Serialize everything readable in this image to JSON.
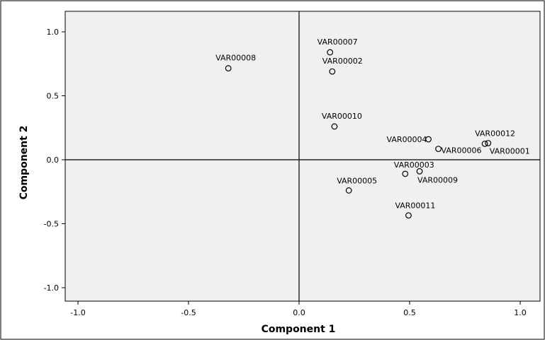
{
  "chart_data": {
    "type": "scatter",
    "title": "",
    "xlabel": "Component 1",
    "ylabel": "Component 2",
    "xlim": [
      -1.1,
      1.1
    ],
    "ylim": [
      -1.1,
      1.1
    ],
    "xticks": [
      "-1.0",
      "-0.5",
      "0.0",
      "0.5",
      "1.0"
    ],
    "xtick_values": [
      -1.0,
      -0.5,
      0.0,
      0.5,
      1.0
    ],
    "yticks": [
      "1.0",
      "0.5",
      "0.0",
      "-0.5",
      "-1.0"
    ],
    "ytick_values": [
      1.0,
      0.5,
      0.0,
      -0.5,
      -1.0
    ],
    "reference_lines": {
      "x": 0.0,
      "y": 0.0
    },
    "grid": false,
    "marker": "open-circle",
    "colors": {
      "plot_background": "#f0f0f0",
      "marker": "#000000",
      "axes": "#000000",
      "text": "#000000"
    },
    "points": [
      {
        "label": "VAR00001",
        "x": 0.855,
        "y": 0.13
      },
      {
        "label": "VAR00002",
        "x": 0.15,
        "y": 0.69
      },
      {
        "label": "VAR00003",
        "x": 0.48,
        "y": -0.11
      },
      {
        "label": "VAR00004",
        "x": 0.585,
        "y": 0.16
      },
      {
        "label": "VAR00005",
        "x": 0.225,
        "y": -0.24
      },
      {
        "label": "VAR00006",
        "x": 0.63,
        "y": 0.085
      },
      {
        "label": "VAR00007",
        "x": 0.14,
        "y": 0.84
      },
      {
        "label": "VAR00008",
        "x": -0.32,
        "y": 0.715
      },
      {
        "label": "VAR00009",
        "x": 0.545,
        "y": -0.09
      },
      {
        "label": "VAR00010",
        "x": 0.16,
        "y": 0.26
      },
      {
        "label": "VAR00011",
        "x": 0.495,
        "y": -0.435
      },
      {
        "label": "VAR00012",
        "x": 0.84,
        "y": 0.125
      }
    ]
  }
}
